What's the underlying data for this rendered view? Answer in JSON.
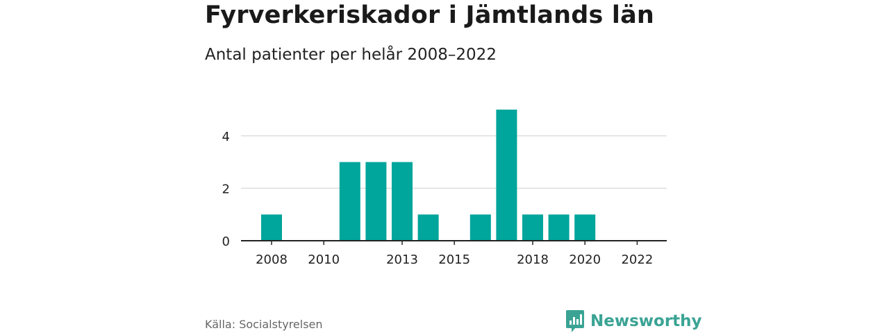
{
  "header": {
    "title": "Fyrverkeriskador i Jämtlands län",
    "subtitle": "Antal patienter per helår 2008–2022"
  },
  "footer": {
    "source": "Källa: Socialstyrelsen",
    "brand": "Newsworthy",
    "brand_icon": "bar-chart-speech-bubble-icon"
  },
  "colors": {
    "bar": "#00a59b",
    "grid": "#dddddd",
    "axis": "#222222",
    "brand": "#3aa394"
  },
  "chart_data": {
    "type": "bar",
    "x": [
      2008,
      2009,
      2010,
      2011,
      2012,
      2013,
      2014,
      2015,
      2016,
      2017,
      2018,
      2019,
      2020,
      2021,
      2022
    ],
    "values": [
      1,
      0,
      0,
      3,
      3,
      3,
      1,
      0,
      1,
      5,
      1,
      1,
      1,
      0,
      0
    ],
    "x_ticks": [
      "2008",
      "2010",
      "2013",
      "2015",
      "2018",
      "2020",
      "2022"
    ],
    "y_ticks": [
      0,
      2,
      4
    ],
    "ylim": [
      0,
      5
    ],
    "grid": true,
    "legend": "none"
  }
}
